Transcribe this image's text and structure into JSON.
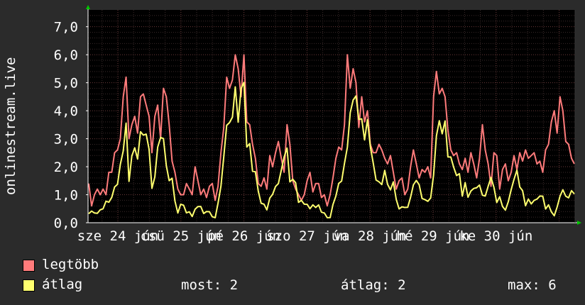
{
  "chart_data": {
    "type": "line",
    "ylabel": "onlinestream.live",
    "ylim": [
      0,
      7.6
    ],
    "y_ticks": [
      "0,0",
      "1,0",
      "2,0",
      "3,0",
      "4,0",
      "5,0",
      "6,0",
      "7,0"
    ],
    "y_tick_values": [
      0,
      1,
      2,
      3,
      4,
      5,
      6,
      7
    ],
    "x_tick_labels": [
      "sze 24 jún",
      "csü 25 jún",
      "pé 26 jún",
      "szo 27 jún",
      "va 28 jún",
      "hé 29 jún",
      "ke 30 jún"
    ],
    "grid": true,
    "n_points": 170,
    "series": [
      {
        "name": "legtöbb",
        "color": "#ff7b7b",
        "values": [
          1.4,
          0.6,
          1.0,
          1.2,
          1.0,
          1.2,
          1.0,
          1.8,
          1.8,
          2.5,
          2.6,
          3.0,
          4.5,
          5.2,
          3.0,
          3.5,
          3.8,
          3.2,
          4.5,
          4.6,
          4.2,
          3.8,
          2.5,
          3.8,
          4.2,
          3.0,
          4.8,
          4.5,
          3.5,
          2.2,
          1.8,
          1.2,
          1.0,
          1.0,
          1.4,
          1.2,
          1.0,
          2.0,
          1.5,
          1.0,
          1.2,
          0.9,
          1.3,
          1.4,
          0.8,
          1.3,
          2.5,
          3.4,
          5.2,
          4.8,
          5.1,
          6.0,
          5.5,
          4.5,
          6.0,
          3.6,
          3.5,
          2.8,
          2.3,
          1.4,
          1.3,
          1.6,
          1.2,
          2.4,
          2.0,
          2.5,
          2.9,
          2.3,
          1.8,
          3.5,
          2.8,
          1.5,
          1.2,
          1.0,
          0.8,
          1.0,
          1.5,
          1.8,
          1.1,
          1.4,
          1.4,
          0.9,
          1.0,
          0.6,
          1.0,
          1.6,
          2.3,
          2.7,
          2.6,
          3.5,
          6.0,
          4.8,
          5.5,
          5.0,
          3.4,
          4.5,
          3.6,
          4.0,
          2.8,
          2.5,
          2.5,
          2.8,
          2.6,
          2.3,
          2.1,
          2.4,
          1.8,
          1.2,
          1.5,
          1.6,
          1.0,
          1.2,
          2.0,
          2.6,
          2.1,
          1.6,
          1.9,
          1.8,
          2.0,
          1.6,
          4.5,
          5.4,
          4.6,
          4.8,
          4.5,
          3.3,
          2.6,
          2.4,
          2.5,
          2.1,
          1.9,
          2.3,
          1.8,
          2.5,
          2.1,
          1.6,
          2.3,
          3.5,
          2.6,
          2.1,
          1.3,
          2.5,
          2.4,
          1.2,
          1.9,
          2.1,
          1.5,
          1.8,
          2.4,
          1.9,
          2.5,
          2.2,
          2.6,
          2.3,
          2.4,
          2.5,
          2.1,
          2.2,
          1.8,
          2.6,
          2.8,
          3.6,
          4.0,
          3.2,
          4.5,
          4.0,
          2.9,
          2.8,
          2.3,
          2.1
        ],
        "anchors": [
          [
            0,
            1.4
          ],
          [
            2,
            0.8
          ],
          [
            4,
            1.1
          ],
          [
            8,
            1.8
          ],
          [
            10,
            2.5
          ],
          [
            12,
            4.4
          ],
          [
            13,
            5.2
          ],
          [
            14,
            3.0
          ],
          [
            17,
            3.6
          ],
          [
            18,
            4.5
          ],
          [
            20,
            4.2
          ],
          [
            22,
            2.6
          ],
          [
            24,
            4.1
          ],
          [
            26,
            4.5
          ],
          [
            27,
            3.4
          ],
          [
            29,
            2.2
          ],
          [
            31,
            1.1
          ],
          [
            34,
            1.3
          ],
          [
            36,
            1.0
          ],
          [
            38,
            1.4
          ],
          [
            40,
            1.0
          ],
          [
            42,
            1.3
          ],
          [
            44,
            0.9
          ],
          [
            46,
            2.5
          ],
          [
            48,
            5.2
          ],
          [
            51,
            6.0
          ],
          [
            54,
            6.0
          ],
          [
            56,
            3.6
          ],
          [
            59,
            1.6
          ],
          [
            62,
            1.2
          ],
          [
            66,
            2.5
          ],
          [
            69,
            3.5
          ],
          [
            72,
            1.5
          ],
          [
            76,
            1.4
          ],
          [
            80,
            1.3
          ],
          [
            84,
            0.8
          ],
          [
            86,
            1.7
          ],
          [
            89,
            3.0
          ],
          [
            91,
            6.0
          ],
          [
            93,
            5.6
          ],
          [
            95,
            4.2
          ],
          [
            97,
            4.8
          ],
          [
            99,
            2.8
          ],
          [
            103,
            2.4
          ],
          [
            106,
            2.2
          ],
          [
            108,
            1.4
          ],
          [
            111,
            1.2
          ],
          [
            113,
            2.4
          ],
          [
            116,
            1.9
          ],
          [
            119,
            1.7
          ],
          [
            121,
            4.4
          ],
          [
            123,
            5.3
          ],
          [
            125,
            4.7
          ],
          [
            127,
            3.4
          ],
          [
            130,
            2.4
          ],
          [
            133,
            2.1
          ],
          [
            135,
            2.4
          ],
          [
            138,
            1.6
          ],
          [
            140,
            2.6
          ],
          [
            142,
            1.8
          ],
          [
            145,
            1.2
          ],
          [
            148,
            2.6
          ],
          [
            149,
            3.6
          ],
          [
            150,
            2.2
          ],
          [
            152,
            1.7
          ],
          [
            154,
            1.4
          ],
          [
            156,
            1.8
          ],
          [
            158,
            1.6
          ],
          [
            160,
            1.2
          ],
          [
            162,
            0.9
          ],
          [
            165,
            2.0
          ],
          [
            167,
            1.8
          ],
          [
            169,
            1.9
          ]
        ]
      },
      {
        "name": "átlag",
        "color": "#ffff6e",
        "anchors": [
          [
            0,
            0.4
          ],
          [
            2,
            0.3
          ],
          [
            4,
            0.5
          ],
          [
            8,
            0.9
          ],
          [
            10,
            1.5
          ],
          [
            12,
            2.8
          ],
          [
            13,
            3.4
          ],
          [
            14,
            2.0
          ],
          [
            17,
            2.5
          ],
          [
            18,
            3.0
          ],
          [
            20,
            3.8
          ],
          [
            22,
            1.3
          ],
          [
            24,
            2.6
          ],
          [
            26,
            3.0
          ],
          [
            27,
            2.1
          ],
          [
            29,
            1.1
          ],
          [
            31,
            0.6
          ],
          [
            34,
            0.5
          ],
          [
            36,
            0.3
          ],
          [
            38,
            0.6
          ],
          [
            40,
            0.3
          ],
          [
            42,
            0.4
          ],
          [
            44,
            0.2
          ],
          [
            46,
            1.3
          ],
          [
            48,
            3.5
          ],
          [
            51,
            4.3
          ],
          [
            54,
            4.8
          ],
          [
            56,
            2.8
          ],
          [
            59,
            1.0
          ],
          [
            62,
            0.6
          ],
          [
            66,
            1.4
          ],
          [
            69,
            2.5
          ],
          [
            72,
            0.9
          ],
          [
            76,
            0.6
          ],
          [
            80,
            0.5
          ],
          [
            84,
            0.2
          ],
          [
            86,
            1.0
          ],
          [
            89,
            2.1
          ],
          [
            91,
            4.0
          ],
          [
            93,
            4.3
          ],
          [
            95,
            3.0
          ],
          [
            97,
            3.4
          ],
          [
            99,
            1.7
          ],
          [
            103,
            1.5
          ],
          [
            106,
            1.2
          ],
          [
            108,
            0.6
          ],
          [
            111,
            0.5
          ],
          [
            113,
            1.4
          ],
          [
            116,
            1.1
          ],
          [
            119,
            0.9
          ],
          [
            121,
            2.9
          ],
          [
            123,
            3.9
          ],
          [
            125,
            3.0
          ],
          [
            127,
            2.0
          ],
          [
            130,
            1.4
          ],
          [
            133,
            1.0
          ],
          [
            135,
            1.3
          ],
          [
            138,
            0.8
          ],
          [
            140,
            1.5
          ],
          [
            142,
            0.9
          ],
          [
            145,
            0.5
          ],
          [
            148,
            1.5
          ],
          [
            149,
            2.2
          ],
          [
            150,
            1.3
          ],
          [
            152,
            0.9
          ],
          [
            154,
            0.7
          ],
          [
            156,
            0.9
          ],
          [
            158,
            0.8
          ],
          [
            160,
            0.5
          ],
          [
            162,
            0.3
          ],
          [
            165,
            1.2
          ],
          [
            167,
            1.0
          ],
          [
            169,
            1.1
          ]
        ]
      }
    ]
  },
  "legend": {
    "max_label": "legtöbb",
    "avg_label": "átlag"
  },
  "stats": {
    "now": "most: 2",
    "avg": "átlag: 2",
    "max": "max: 6"
  },
  "colors": {
    "background": "#2b2b2b",
    "plot_background": "#000000",
    "grid_minor": "#3a2a2a",
    "grid_major": "#6a3a3a",
    "axis": "#ffffff",
    "arrow": "#00c800"
  }
}
